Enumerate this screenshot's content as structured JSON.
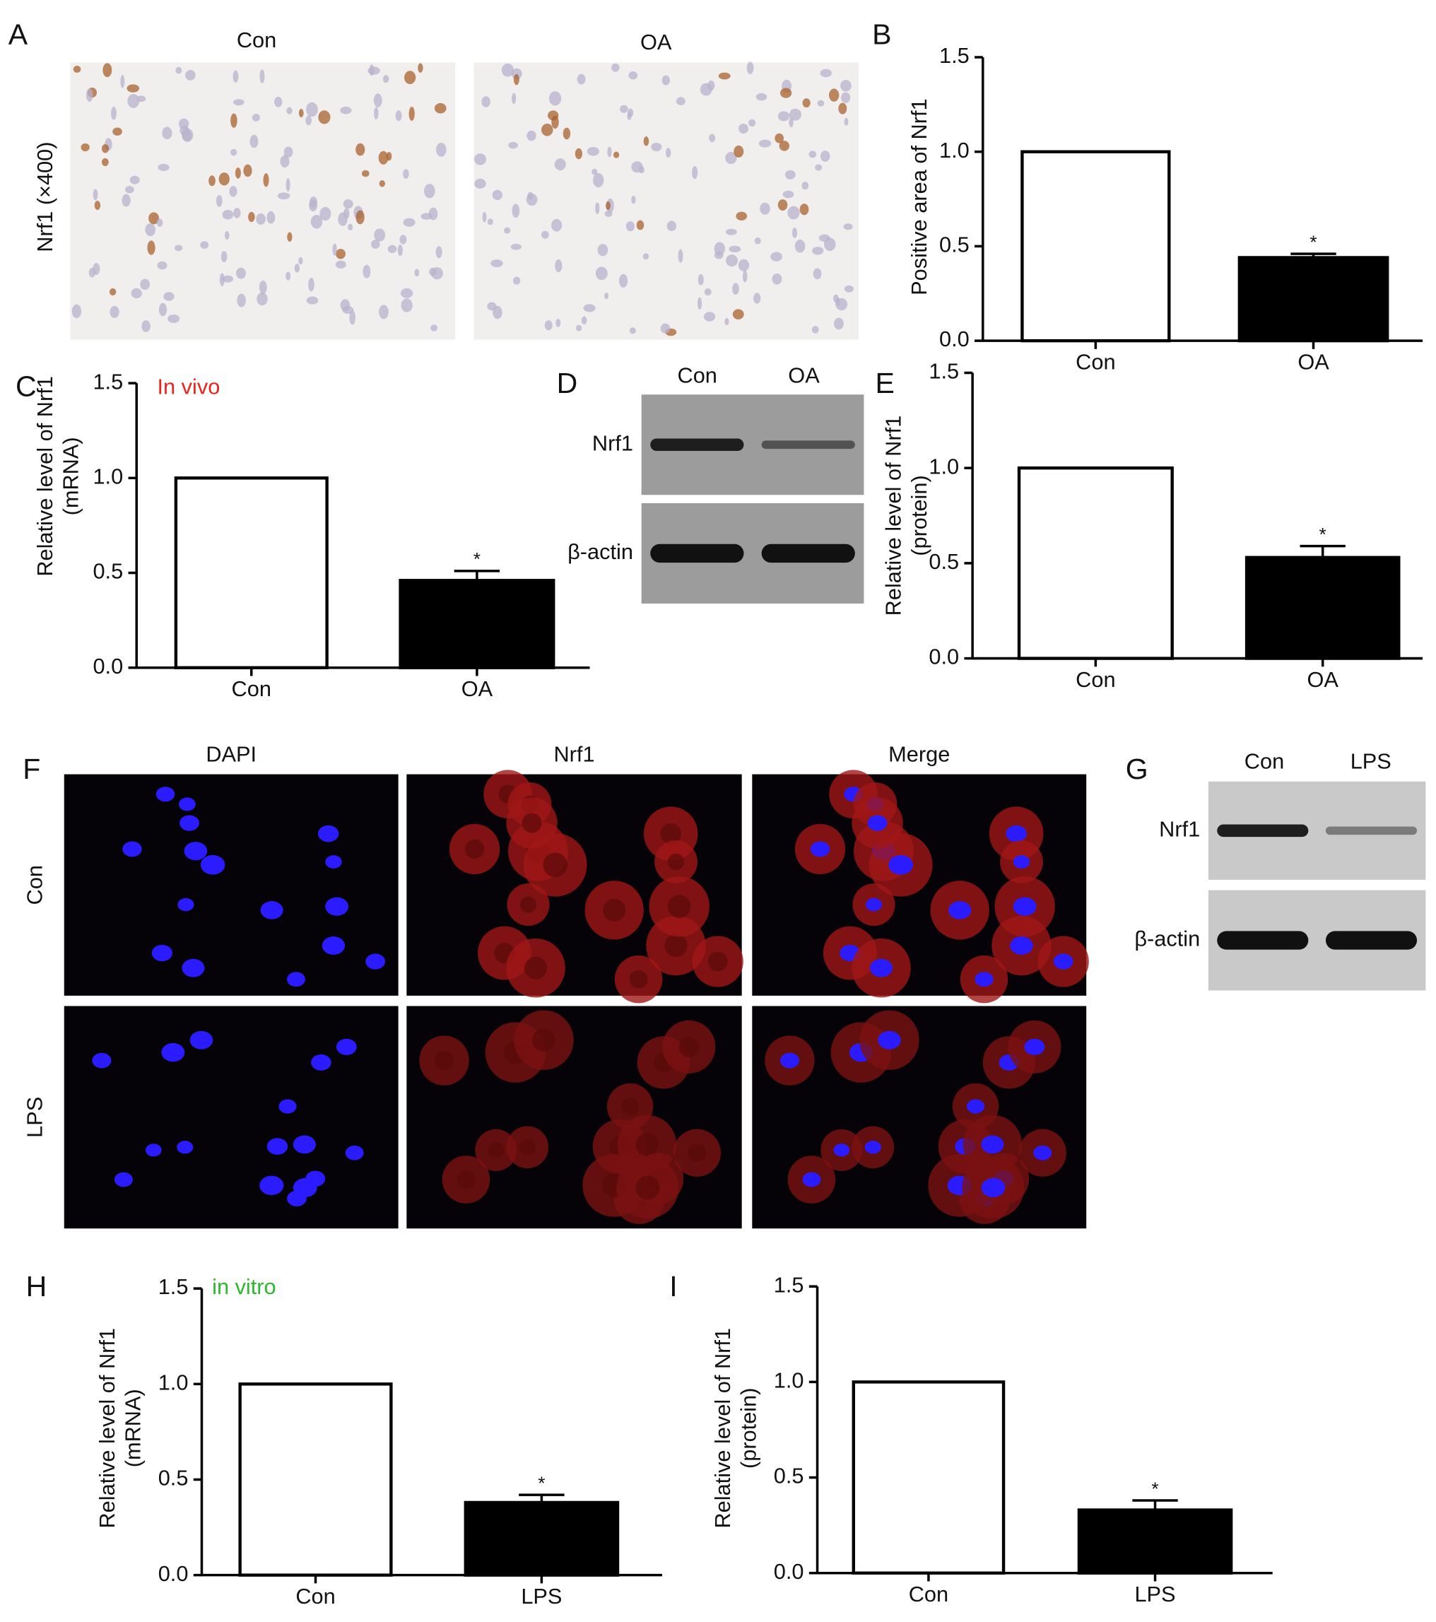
{
  "chart_data": [
    {
      "type": "bar",
      "panel_label": "B",
      "ylabel": [
        "Positive area of Nrf1"
      ],
      "categories": [
        "Con",
        "OA"
      ],
      "values": [
        1.0,
        0.44
      ],
      "errors": [
        null,
        0.02
      ],
      "significance": [
        null,
        "*"
      ],
      "colors": [
        "#ffffff",
        "#000000"
      ],
      "ylim": [
        0,
        1.5
      ],
      "yticks": [
        {
          "value": 0,
          "label": "0.0"
        },
        {
          "value": 0.5,
          "label": "0.5"
        },
        {
          "value": 1,
          "label": "1.0"
        },
        {
          "value": 1.5,
          "label": "1.5"
        }
      ]
    },
    {
      "type": "bar",
      "panel_label": "C",
      "annotation": "In vivo",
      "annotation_color": "#e8251f",
      "ylabel": [
        "Relative level of Nrf1",
        "(mRNA)"
      ],
      "categories": [
        "Con",
        "OA"
      ],
      "values": [
        1.0,
        0.46
      ],
      "errors": [
        null,
        0.05
      ],
      "significance": [
        null,
        "*"
      ],
      "colors": [
        "#ffffff",
        "#000000"
      ],
      "ylim": [
        0,
        1.5
      ],
      "yticks": [
        {
          "value": 0,
          "label": "0.0"
        },
        {
          "value": 0.5,
          "label": "0.5"
        },
        {
          "value": 1,
          "label": "1.0"
        },
        {
          "value": 1.5,
          "label": "1.5"
        }
      ]
    },
    {
      "type": "bar",
      "panel_label": "E",
      "ylabel": [
        "Relative level of Nrf1",
        "(protein)"
      ],
      "categories": [
        "Con",
        "OA"
      ],
      "values": [
        1.0,
        0.53
      ],
      "errors": [
        null,
        0.06
      ],
      "significance": [
        null,
        "*"
      ],
      "colors": [
        "#ffffff",
        "#000000"
      ],
      "ylim": [
        0,
        1.5
      ],
      "yticks": [
        {
          "value": 0,
          "label": "0.0"
        },
        {
          "value": 0.5,
          "label": "0.5"
        },
        {
          "value": 1,
          "label": "1.0"
        },
        {
          "value": 1.5,
          "label": "1.5"
        }
      ]
    },
    {
      "type": "bar",
      "panel_label": "H",
      "annotation": "in vitro",
      "annotation_color": "#2db82d",
      "ylabel": [
        "Relative level of Nrf1",
        "(mRNA)"
      ],
      "categories": [
        "Con",
        "LPS"
      ],
      "values": [
        1.0,
        0.38
      ],
      "errors": [
        null,
        0.04
      ],
      "significance": [
        null,
        "*"
      ],
      "colors": [
        "#ffffff",
        "#000000"
      ],
      "ylim": [
        0,
        1.5
      ],
      "yticks": [
        {
          "value": 0,
          "label": "0.0"
        },
        {
          "value": 0.5,
          "label": "0.5"
        },
        {
          "value": 1,
          "label": "1.0"
        },
        {
          "value": 1.5,
          "label": "1.5"
        }
      ]
    },
    {
      "type": "bar",
      "panel_label": "I",
      "ylabel": [
        "Relative level of Nrf1",
        "(protein)"
      ],
      "categories": [
        "Con",
        "LPS"
      ],
      "values": [
        1.0,
        0.33
      ],
      "errors": [
        null,
        0.05
      ],
      "significance": [
        null,
        "*"
      ],
      "colors": [
        "#ffffff",
        "#000000"
      ],
      "ylim": [
        0,
        1.5
      ],
      "yticks": [
        {
          "value": 0,
          "label": "0.0"
        },
        {
          "value": 0.5,
          "label": "0.5"
        },
        {
          "value": 1,
          "label": "1.0"
        },
        {
          "value": 1.5,
          "label": "1.5"
        }
      ]
    }
  ],
  "panels": {
    "A": {
      "label": "A",
      "columns": [
        "Con",
        "OA"
      ],
      "row_label": "Nrf1 (×400)"
    },
    "D": {
      "label": "D",
      "lanes": [
        "Con",
        "OA"
      ],
      "rows": [
        "Nrf1",
        "β-actin"
      ]
    },
    "F": {
      "label": "F",
      "columns": [
        "DAPI",
        "Nrf1",
        "Merge"
      ],
      "rows": [
        "Con",
        "LPS"
      ]
    },
    "G": {
      "label": "G",
      "lanes": [
        "Con",
        "LPS"
      ],
      "rows": [
        "Nrf1",
        "β-actin"
      ]
    }
  }
}
